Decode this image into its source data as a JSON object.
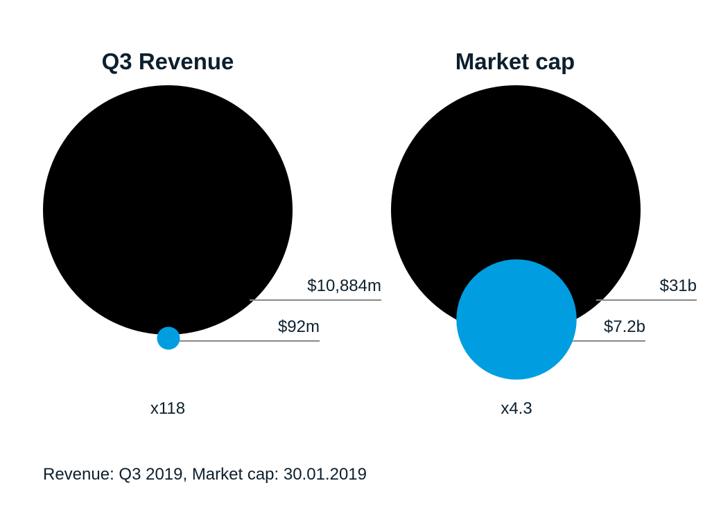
{
  "chart_data": [
    {
      "type": "bubble-comparison",
      "title": "Q3 Revenue",
      "items": [
        {
          "label": "$10,884m",
          "value": 10884,
          "unit": "m",
          "color": "#000000"
        },
        {
          "label": "$92m",
          "value": 92,
          "unit": "m",
          "color": "#009ee0"
        }
      ],
      "ratio_label": "x118"
    },
    {
      "type": "bubble-comparison",
      "title": "Market cap",
      "items": [
        {
          "label": "$31b",
          "value": 31,
          "unit": "b",
          "color": "#000000"
        },
        {
          "label": "$7.2b",
          "value": 7.2,
          "unit": "b",
          "color": "#009ee0"
        }
      ],
      "ratio_label": "x4.3"
    }
  ],
  "footnote": "Revenue: Q3 2019, Market cap: 30.01.2019"
}
